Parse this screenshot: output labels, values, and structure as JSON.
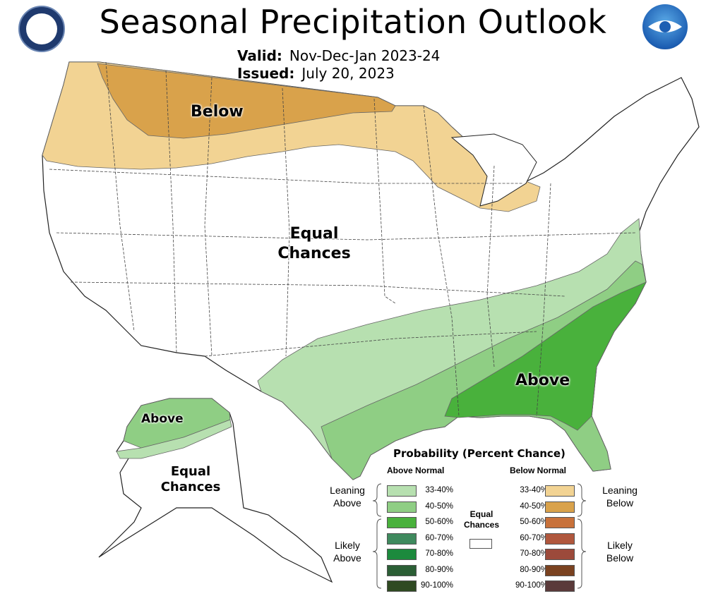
{
  "title": "Seasonal Precipitation Outlook",
  "valid_label": "Valid:",
  "valid_value": "Nov-Dec-Jan 2023-24",
  "issued_label": "Issued:",
  "issued_value": "July 20, 2023",
  "logos": {
    "left": "department-of-commerce-seal",
    "right": "noaa-logo"
  },
  "map_labels": {
    "below": "Below",
    "equal_chances_1": "Equal",
    "equal_chances_2": "Chances",
    "above": "Above",
    "alaska_above": "Above",
    "alaska_equal_1": "Equal",
    "alaska_equal_2": "Chances"
  },
  "legend": {
    "title": "Probability (Percent Chance)",
    "above_header": "Above Normal",
    "below_header": "Below Normal",
    "leaning_above": [
      "Leaning",
      "Above"
    ],
    "likely_above": [
      "Likely",
      "Above"
    ],
    "leaning_below": [
      "Leaning",
      "Below"
    ],
    "likely_below": [
      "Likely",
      "Below"
    ],
    "equal_chances": [
      "Equal",
      "Chances"
    ],
    "above_rows": [
      {
        "label": "33-40%",
        "color": "#b7e0b0"
      },
      {
        "label": "40-50%",
        "color": "#8fce84"
      },
      {
        "label": "50-60%",
        "color": "#49b13c"
      },
      {
        "label": "60-70%",
        "color": "#3f8a5e"
      },
      {
        "label": "70-80%",
        "color": "#1c8a3d"
      },
      {
        "label": "80-90%",
        "color": "#2b5e35"
      },
      {
        "label": "90-100%",
        "color": "#2f4a22"
      }
    ],
    "below_rows": [
      {
        "label": "33-40%",
        "color": "#f2d393"
      },
      {
        "label": "40-50%",
        "color": "#d9a24b"
      },
      {
        "label": "50-60%",
        "color": "#c8713a"
      },
      {
        "label": "60-70%",
        "color": "#b0573d"
      },
      {
        "label": "70-80%",
        "color": "#9c4a3b"
      },
      {
        "label": "80-90%",
        "color": "#7a4220"
      },
      {
        "label": "90-100%",
        "color": "#5a3a3a"
      }
    ]
  },
  "colors": {
    "below_light": "#f2d393",
    "below_dark": "#d9a24b",
    "above_light": "#b7e0b0",
    "above_mid": "#8fce84",
    "above_dark": "#49b13c",
    "border": "#222222"
  }
}
